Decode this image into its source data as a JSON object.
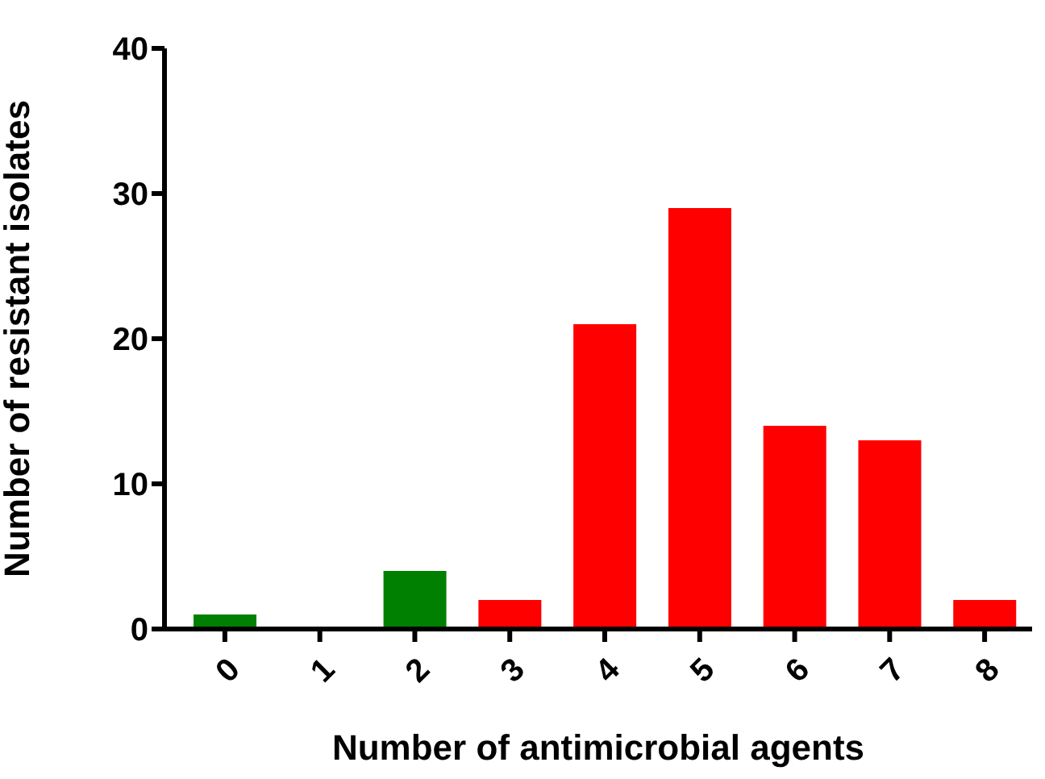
{
  "chart_data": {
    "type": "bar",
    "xlabel": "Number of antimicrobial agents",
    "ylabel": "Number of resistant isolates",
    "categories": [
      "0",
      "1",
      "2",
      "3",
      "4",
      "5",
      "6",
      "7",
      "8"
    ],
    "values": [
      1,
      0,
      4,
      2,
      21,
      29,
      14,
      13,
      2
    ],
    "colors": [
      "#008000",
      "#008000",
      "#008000",
      "#ff0000",
      "#ff0000",
      "#ff0000",
      "#ff0000",
      "#ff0000",
      "#ff0000"
    ],
    "ylim": [
      0,
      40
    ],
    "yticks": [
      0,
      10,
      20,
      30,
      40
    ],
    "grid": false,
    "legend": false
  }
}
